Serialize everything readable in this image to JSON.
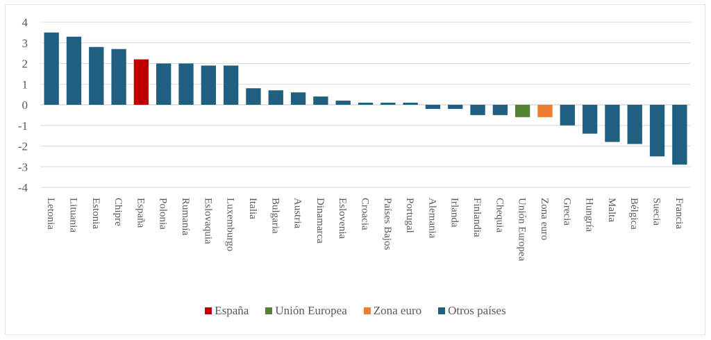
{
  "chart_data": {
    "type": "bar",
    "title": "",
    "xlabel": "",
    "ylabel": "",
    "ylim": [
      -4,
      4
    ],
    "yticks": [
      4,
      3,
      2,
      1,
      0,
      -1,
      -2,
      -3,
      -4
    ],
    "ytick_labels": [
      "4",
      "3",
      "2",
      "1",
      "0",
      "-1",
      "-2",
      "-3",
      "-4"
    ],
    "grid": true,
    "legend_position": "bottom",
    "categories": [
      "Letonia",
      "Lituania",
      "Estonia",
      "Chipre",
      "España",
      "Polonia",
      "Rumanía",
      "Eslovaquia",
      "Luxemburgo",
      "Italia",
      "Bulgaria",
      "Austria",
      "Dinamarca",
      "Eslovenia",
      "Croacia",
      "Países Bajos",
      "Portugal",
      "Alemania",
      "Irlanda",
      "Finlandia",
      "Chequia",
      "Unión Europea",
      "Zona euro",
      "Grecia",
      "Hungría",
      "Malta",
      "Bélgica",
      "Suecia",
      "Francia"
    ],
    "values": [
      3.5,
      3.3,
      2.8,
      2.7,
      2.2,
      2.0,
      2.0,
      1.9,
      1.9,
      0.8,
      0.7,
      0.6,
      0.4,
      0.2,
      0.1,
      0.1,
      0.1,
      -0.2,
      -0.2,
      -0.5,
      -0.5,
      -0.6,
      -0.6,
      -1.0,
      -1.4,
      -1.8,
      -1.9,
      -2.5,
      -2.9
    ],
    "groups": [
      "otros",
      "otros",
      "otros",
      "otros",
      "espana",
      "otros",
      "otros",
      "otros",
      "otros",
      "otros",
      "otros",
      "otros",
      "otros",
      "otros",
      "otros",
      "otros",
      "otros",
      "otros",
      "otros",
      "otros",
      "otros",
      "ue",
      "zona",
      "otros",
      "otros",
      "otros",
      "otros",
      "otros",
      "otros"
    ],
    "legend": [
      {
        "key": "espana",
        "label": "España",
        "color": "#c00000"
      },
      {
        "key": "ue",
        "label": "Unión Europea",
        "color": "#548235"
      },
      {
        "key": "zona",
        "label": "Zona euro",
        "color": "#ed7d31"
      },
      {
        "key": "otros",
        "label": "Otros países",
        "color": "#1f5f80"
      }
    ]
  },
  "colors": {
    "gridline": "#d9d9d9",
    "text": "#595959"
  }
}
